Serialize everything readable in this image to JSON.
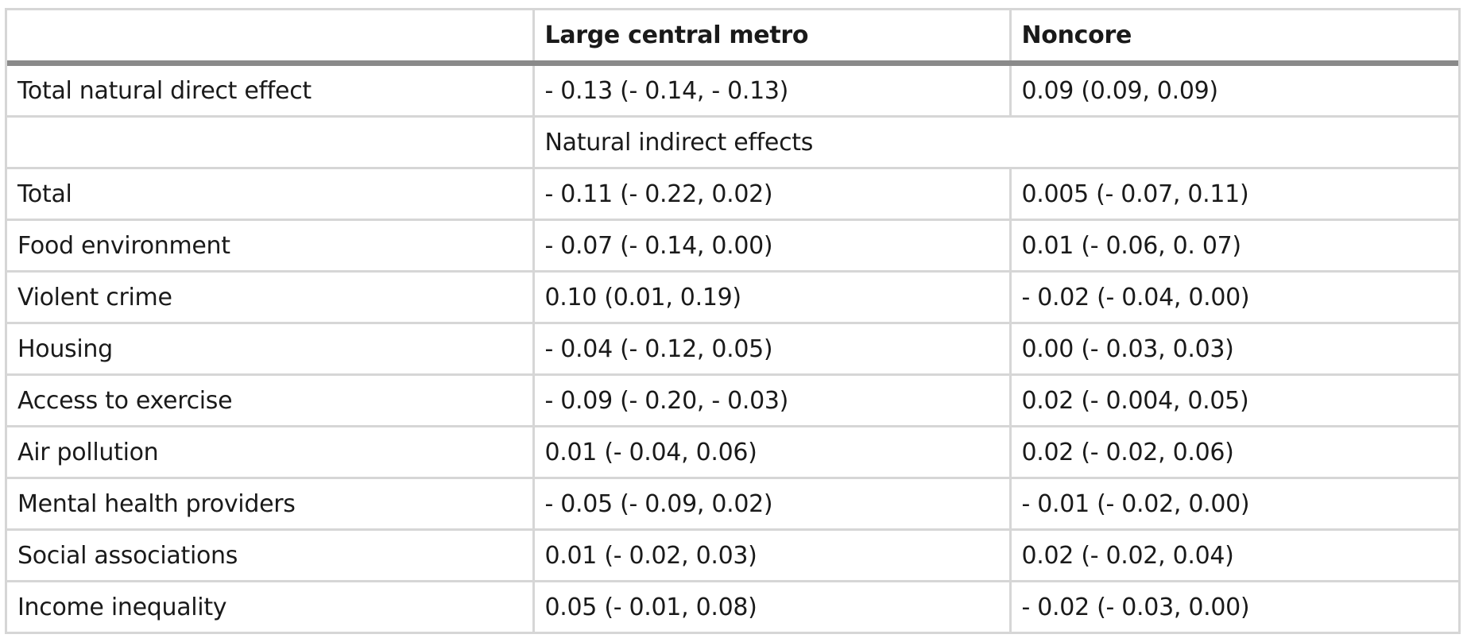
{
  "table": {
    "headers": [
      "",
      "Large central metro",
      "Noncore"
    ],
    "first_row": {
      "label": "Total natural direct effect",
      "large_central_metro": "- 0.13 (- 0.14, - 0.13)",
      "noncore": "0.09 (0.09, 0.09)"
    },
    "section_label": "Natural indirect effects",
    "rows": [
      {
        "label": "Total",
        "large_central_metro": "- 0.11 (- 0.22, 0.02)",
        "noncore": "0.005 (- 0.07, 0.11)"
      },
      {
        "label": "Food environment",
        "large_central_metro": "- 0.07 (- 0.14, 0.00)",
        "noncore": "0.01 (- 0.06, 0. 07)"
      },
      {
        "label": "Violent crime",
        "large_central_metro": "0.10 (0.01, 0.19)",
        "noncore": "- 0.02 (- 0.04, 0.00)"
      },
      {
        "label": "Housing",
        "large_central_metro": "- 0.04 (- 0.12, 0.05)",
        "noncore": "0.00 (- 0.03, 0.03)"
      },
      {
        "label": "Access to exercise",
        "large_central_metro": "- 0.09 (- 0.20, - 0.03)",
        "noncore": "0.02 (- 0.004, 0.05)"
      },
      {
        "label": "Air pollution",
        "large_central_metro": "0.01 (- 0.04, 0.06)",
        "noncore": "0.02 (- 0.02, 0.06)"
      },
      {
        "label": "Mental health providers",
        "large_central_metro": "- 0.05 (- 0.09, 0.02)",
        "noncore": "- 0.01 (- 0.02, 0.00)"
      },
      {
        "label": "Social associations",
        "large_central_metro": "0.01 (- 0.02, 0.03)",
        "noncore": "0.02 (- 0.02, 0.04)"
      },
      {
        "label": "Income inequality",
        "large_central_metro": "0.05 (- 0.01, 0.08)",
        "noncore": "- 0.02 (- 0.03, 0.00)"
      }
    ]
  }
}
